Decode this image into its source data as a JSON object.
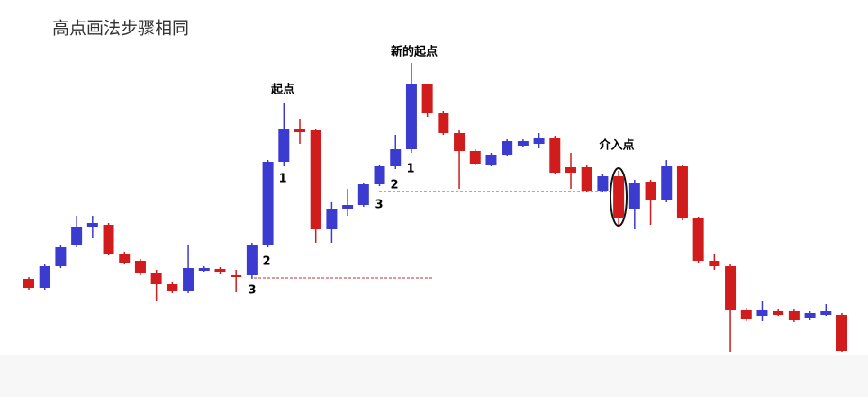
{
  "chart_data": {
    "type": "candlestick",
    "title": "高点画法步骤相同",
    "annotations": [
      "起点",
      "新的起点",
      "介入点"
    ],
    "step_labels": [
      "1",
      "2",
      "3",
      "1",
      "2",
      "3"
    ],
    "up_color": "#3b3bd0",
    "down_color": "#d01c1c",
    "ylim": [
      20,
      400
    ],
    "open": [
      110,
      100,
      124,
      147,
      168,
      170,
      138,
      130,
      116,
      104,
      96,
      119,
      121,
      114,
      114,
      147,
      240,
      277,
      275,
      165,
      187,
      192,
      215,
      235,
      254,
      327,
      294,
      272,
      252,
      237,
      248,
      258,
      260,
      267,
      234,
      234,
      208,
      224,
      188,
      218,
      198,
      235,
      177,
      130,
      124,
      75,
      68,
      74,
      74,
      66,
      70,
      70
    ],
    "close": [
      100,
      124,
      145,
      168,
      172,
      138,
      128,
      116,
      104,
      96,
      122,
      122,
      117,
      112,
      147,
      240,
      277,
      273,
      165,
      187,
      192,
      215,
      235,
      254,
      327,
      294,
      272,
      252,
      238,
      248,
      263,
      263,
      267,
      228,
      228,
      208,
      224,
      178,
      216,
      198,
      235,
      177,
      130,
      124,
      75,
      65,
      75,
      70,
      64,
      72,
      74,
      30
    ],
    "high": [
      112,
      126,
      147,
      180,
      180,
      172,
      140,
      132,
      120,
      106,
      148,
      124,
      123,
      120,
      150,
      242,
      305,
      288,
      277,
      195,
      210,
      217,
      237,
      270,
      350,
      327,
      296,
      275,
      254,
      250,
      265,
      265,
      272,
      269,
      250,
      236,
      226,
      230,
      220,
      220,
      242,
      237,
      179,
      138,
      126,
      77,
      85,
      76,
      76,
      74,
      82,
      72
    ],
    "low": [
      98,
      98,
      122,
      145,
      155,
      136,
      126,
      114,
      85,
      94,
      94,
      117,
      115,
      95,
      110,
      145,
      235,
      260,
      150,
      150,
      180,
      190,
      213,
      232,
      250,
      290,
      270,
      210,
      236,
      235,
      246,
      256,
      255,
      226,
      210,
      206,
      206,
      170,
      165,
      170,
      195,
      175,
      128,
      120,
      28,
      63,
      63,
      68,
      62,
      64,
      68,
      28
    ]
  }
}
